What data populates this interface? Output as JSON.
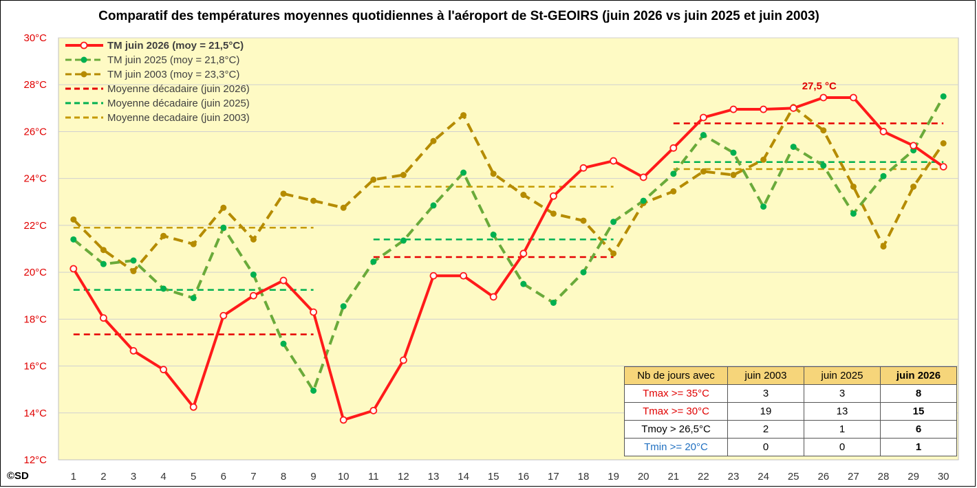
{
  "title": "Comparatif des températures moyennes quotidiennes à l'aéroport de St-GEOIRS (juin 2026 vs juin 2025 et juin 2003)",
  "credit": "©SD",
  "annotation": {
    "text": "27,5 °C",
    "day": 26,
    "value": 27.45
  },
  "colors": {
    "plot_bg": "#fefac4",
    "red": "#ff1a1a",
    "green": "#6aaa3a",
    "gold": "#b58b00",
    "dash_red": "#e60000",
    "dash_green": "#00b050",
    "dash_gold": "#c59a00",
    "grid": "#d0d0d0"
  },
  "chart_data": {
    "type": "line",
    "ylim": [
      12,
      30
    ],
    "yticks": [
      "12°C",
      "14°C",
      "16°C",
      "18°C",
      "20°C",
      "22°C",
      "24°C",
      "26°C",
      "28°C",
      "30°C"
    ],
    "ytick_values": [
      12,
      14,
      16,
      18,
      20,
      22,
      24,
      26,
      28,
      30
    ],
    "x": [
      1,
      2,
      3,
      4,
      5,
      6,
      7,
      8,
      9,
      10,
      11,
      12,
      13,
      14,
      15,
      16,
      17,
      18,
      19,
      20,
      21,
      22,
      23,
      24,
      25,
      26,
      27,
      28,
      29,
      30
    ],
    "grid": true,
    "legend_position": "top-left",
    "series": [
      {
        "name": "TM juin 2026 (moy = 21,5°C)",
        "style": "solid-open-markers",
        "values": [
          20.15,
          18.05,
          16.65,
          15.85,
          14.25,
          18.15,
          19.0,
          19.65,
          18.3,
          13.7,
          14.1,
          16.25,
          19.85,
          19.85,
          18.95,
          20.8,
          23.25,
          24.45,
          24.75,
          24.05,
          25.3,
          26.6,
          26.95,
          26.95,
          27.0,
          27.45,
          27.45,
          26.0,
          25.4,
          24.5
        ]
      },
      {
        "name": "TM juin 2025 (moy = 21,8°C)",
        "style": "dashed-filled-markers",
        "values": [
          21.4,
          20.35,
          20.5,
          19.3,
          18.9,
          21.9,
          19.9,
          16.95,
          14.95,
          18.55,
          20.45,
          21.35,
          22.85,
          24.25,
          21.6,
          19.5,
          18.7,
          20.0,
          22.15,
          23.05,
          24.2,
          25.85,
          25.1,
          22.8,
          25.35,
          24.55,
          22.5,
          24.1,
          25.2,
          27.5
        ]
      },
      {
        "name": "TM juin 2003 (moy = 23,3°C)",
        "style": "dashed-filled-markers",
        "values": [
          22.25,
          20.95,
          20.05,
          21.55,
          21.2,
          22.75,
          21.4,
          23.35,
          23.05,
          22.75,
          23.95,
          24.15,
          25.6,
          26.7,
          24.2,
          23.3,
          22.5,
          22.2,
          20.8,
          22.95,
          23.45,
          24.3,
          24.15,
          24.8,
          27.05,
          26.05,
          23.65,
          21.1,
          23.65,
          25.5
        ]
      },
      {
        "name": "Moyenne décadaire (juin 2026)",
        "style": "dashed",
        "segments": [
          {
            "from": 1,
            "to": 9,
            "value": 17.35
          },
          {
            "from": 11,
            "to": 19,
            "value": 20.65
          },
          {
            "from": 21,
            "to": 30,
            "value": 26.35
          }
        ]
      },
      {
        "name": "Moyenne décadaire (juin 2025)",
        "style": "dashed",
        "segments": [
          {
            "from": 1,
            "to": 9,
            "value": 19.25
          },
          {
            "from": 11,
            "to": 19,
            "value": 21.4
          },
          {
            "from": 21,
            "to": 30,
            "value": 24.7
          }
        ]
      },
      {
        "name": "Moyenne decadaire (juin 2003)",
        "style": "dashed",
        "segments": [
          {
            "from": 1,
            "to": 9,
            "value": 21.9
          },
          {
            "from": 11,
            "to": 19,
            "value": 23.65
          },
          {
            "from": 21,
            "to": 30,
            "value": 24.4
          }
        ]
      }
    ]
  },
  "table": {
    "headers": [
      "Nb de jours avec",
      "juin 2003",
      "juin 2025",
      "juin 2026"
    ],
    "rows": [
      {
        "label": "Tmax >= 35°C",
        "label_color": "#e00000",
        "values": [
          "3",
          "3",
          "8"
        ]
      },
      {
        "label": "Tmax >= 30°C",
        "label_color": "#e00000",
        "values": [
          "19",
          "13",
          "15"
        ]
      },
      {
        "label": "Tmoy > 26,5°C",
        "label_color": "#000000",
        "values": [
          "2",
          "1",
          "6"
        ]
      },
      {
        "label": "Tmin >= 20°C",
        "label_color": "#1f6fc0",
        "values": [
          "0",
          "0",
          "1"
        ]
      }
    ]
  }
}
